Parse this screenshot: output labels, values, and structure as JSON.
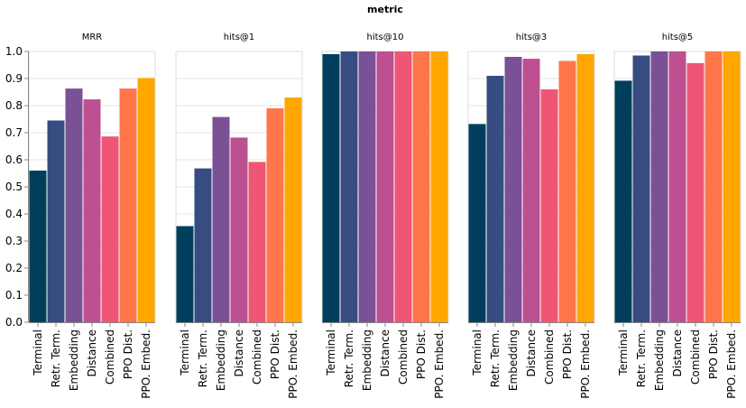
{
  "chart_data": {
    "type": "bar",
    "title": "metric",
    "categories": [
      "Terminal",
      "Retr. Term.",
      "Embedding",
      "Distance",
      "Combined",
      "PPO Dist.",
      "PPO. Embed."
    ],
    "colors": [
      "#003f5c",
      "#374c80",
      "#7a5195",
      "#bc5090",
      "#ef5675",
      "#ff764a",
      "#ffa600"
    ],
    "ylim": [
      0,
      1
    ],
    "yticks": [
      "0.0",
      "0.1",
      "0.2",
      "0.3",
      "0.4",
      "0.5",
      "0.6",
      "0.7",
      "0.8",
      "0.9",
      "1.0"
    ],
    "grid": true,
    "facets": [
      {
        "name": "MRR",
        "values": [
          0.56,
          0.745,
          0.863,
          0.823,
          0.686,
          0.863,
          0.902
        ]
      },
      {
        "name": "hits@1",
        "values": [
          0.355,
          0.568,
          0.758,
          0.682,
          0.592,
          0.79,
          0.83
        ]
      },
      {
        "name": "hits@10",
        "values": [
          0.99,
          1.0,
          1.0,
          1.0,
          1.0,
          1.0,
          1.0
        ]
      },
      {
        "name": "hits@3",
        "values": [
          0.732,
          0.91,
          0.98,
          0.973,
          0.86,
          0.965,
          0.99
        ]
      },
      {
        "name": "hits@5",
        "values": [
          0.892,
          0.985,
          1.0,
          1.0,
          0.957,
          1.0,
          1.0
        ]
      }
    ]
  }
}
